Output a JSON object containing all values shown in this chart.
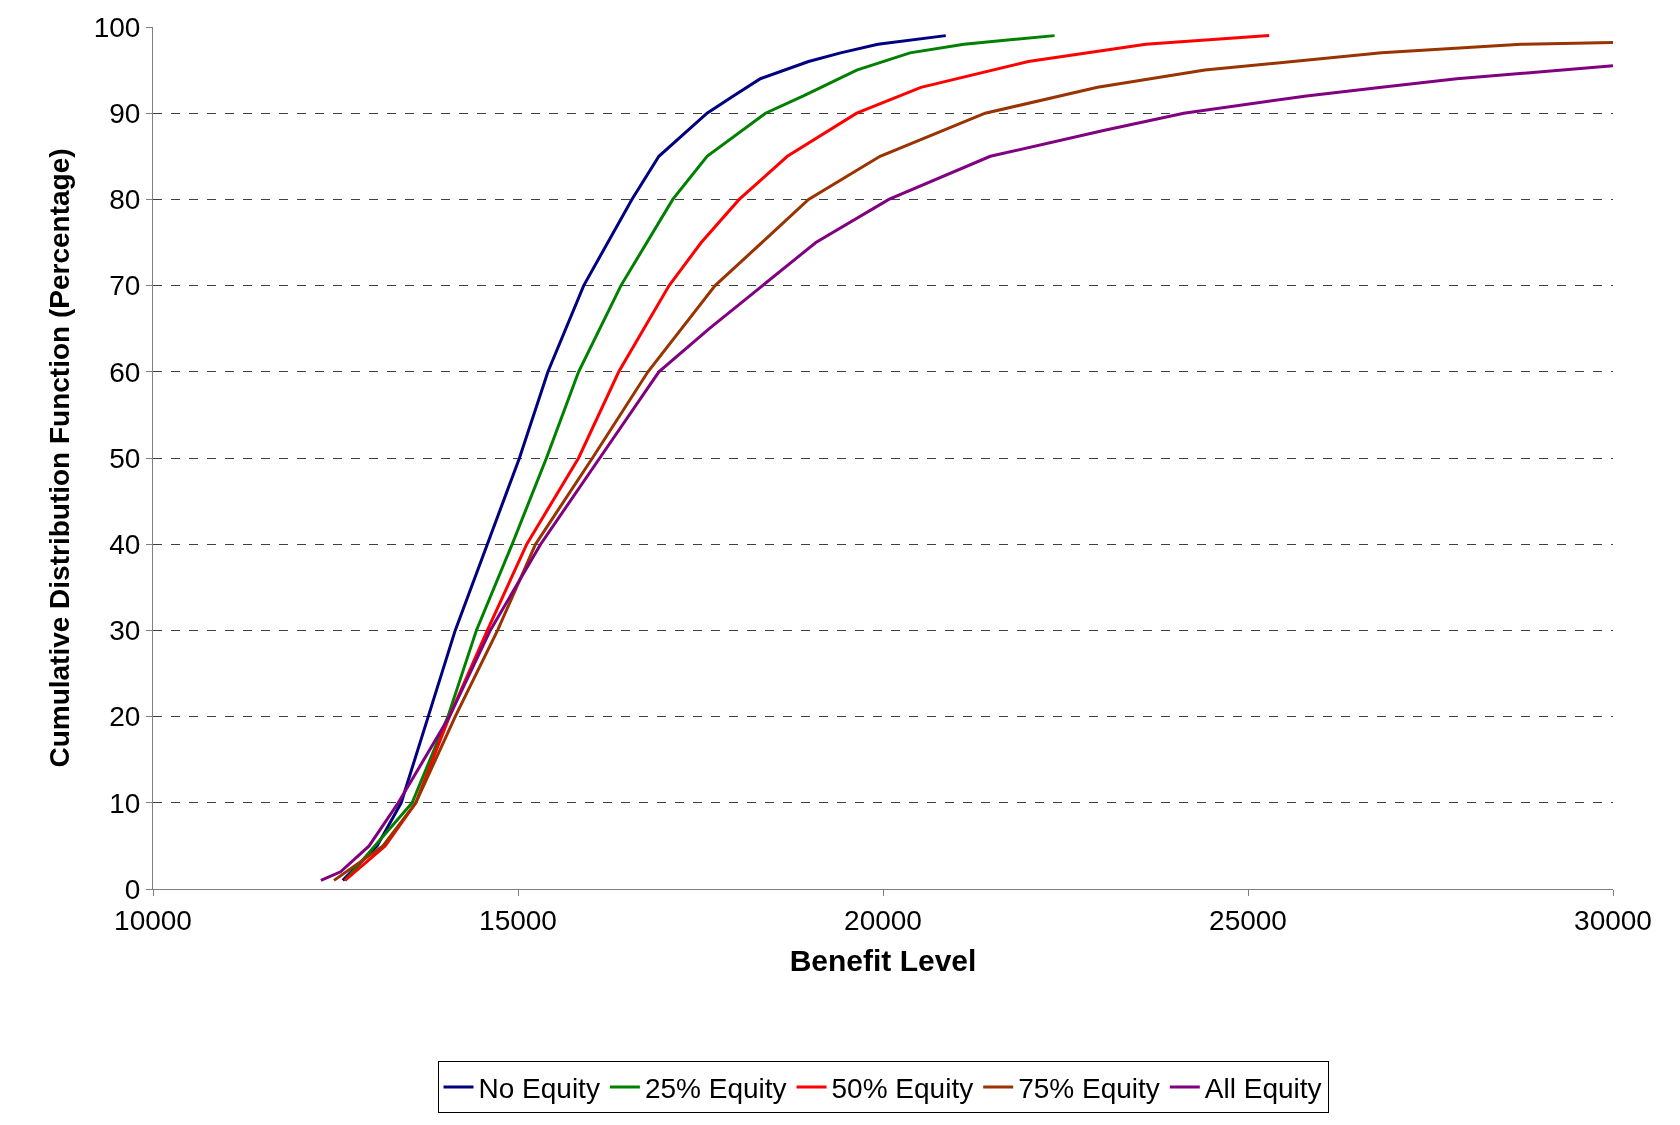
{
  "chart_data": {
    "type": "line",
    "xlabel": "Benefit Level",
    "ylabel": "Cumulative Distribution Function (Percentage)",
    "xlim": [
      10000,
      30000
    ],
    "xticks": [
      10000,
      15000,
      20000,
      25000,
      30000
    ],
    "ylim": [
      0,
      100
    ],
    "yticks": [
      0,
      10,
      20,
      30,
      40,
      50,
      60,
      70,
      80,
      90,
      100
    ],
    "grid": "y",
    "legend": "bottom",
    "marker": "none",
    "line_style": "solid",
    "series": [
      {
        "name": "No Equity",
        "color": "#000080",
        "x": [
          12600,
          13070,
          13400,
          13770,
          14140,
          14580,
          15020,
          15410,
          15900,
          16560,
          16930,
          17590,
          17950,
          18320,
          18980,
          19420,
          19930,
          20860
        ],
        "values": [
          1,
          5,
          10,
          20,
          30,
          40,
          50,
          60,
          70,
          80,
          85,
          90,
          92,
          94,
          96,
          97,
          98,
          99
        ]
      },
      {
        "name": "25% Equity",
        "color": "#008000",
        "x": [
          12630,
          13550,
          14040,
          14430,
          14920,
          15390,
          15830,
          16410,
          17120,
          17590,
          18390,
          18910,
          19640,
          20370,
          21110,
          22350
        ],
        "values": [
          1,
          10,
          20,
          30,
          40,
          50,
          60,
          70,
          80,
          85,
          90,
          92,
          95,
          97,
          98,
          99
        ]
      },
      {
        "name": "50% Equity",
        "color": "#ff0000",
        "x": [
          12630,
          13180,
          13600,
          14060,
          14580,
          15120,
          15830,
          16380,
          17070,
          17510,
          18030,
          18690,
          19640,
          20520,
          21990,
          23600,
          25290
        ],
        "values": [
          1,
          5,
          10,
          20,
          30,
          40,
          50,
          60,
          70,
          75,
          80,
          85,
          90,
          93,
          96,
          98,
          99
        ]
      },
      {
        "name": "75% Equity",
        "color": "#993300",
        "x": [
          12480,
          13150,
          13600,
          14140,
          14720,
          15240,
          16020,
          16780,
          17700,
          18470,
          18980,
          19960,
          21400,
          22940,
          24410,
          26830,
          28740,
          30000
        ],
        "values": [
          1,
          5,
          10,
          20,
          30,
          40,
          50,
          60,
          70,
          76,
          80,
          85,
          90,
          93,
          95,
          97,
          98,
          98.2
        ]
      },
      {
        "name": "All Equity",
        "color": "#800080",
        "x": [
          12300,
          12570,
          12960,
          13360,
          14060,
          14620,
          15310,
          16120,
          16930,
          17620,
          18350,
          19080,
          20080,
          21470,
          23020,
          24120,
          25800,
          26830,
          27860,
          30000
        ],
        "values": [
          1,
          2,
          5,
          10,
          20,
          30,
          40,
          50,
          60,
          65,
          70,
          75,
          80,
          85,
          88,
          90,
          92,
          93,
          94,
          95.5
        ]
      }
    ]
  }
}
